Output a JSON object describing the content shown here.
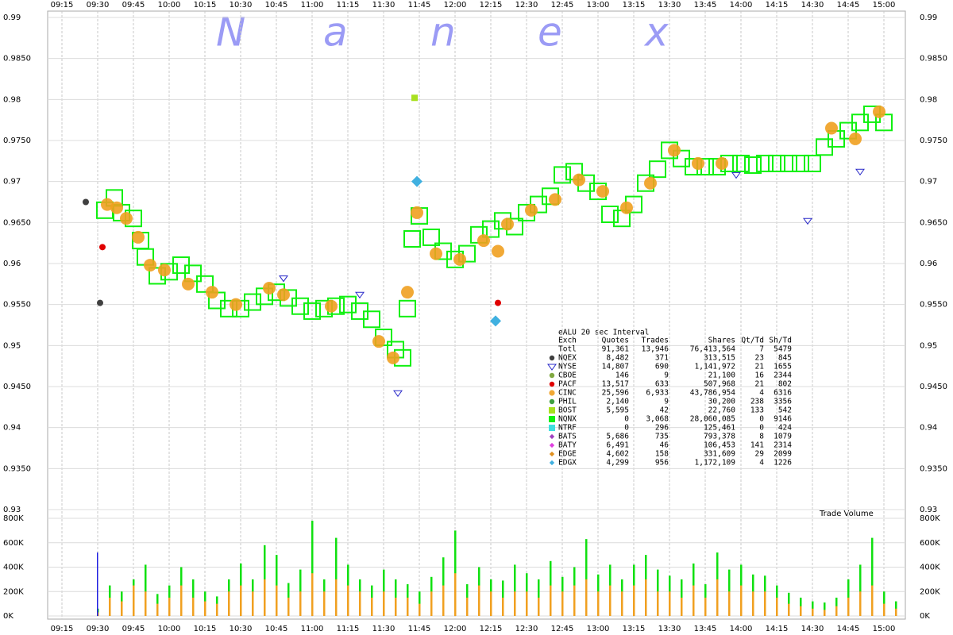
{
  "chart_data": {
    "type": "scatter",
    "watermark": [
      "N",
      "a",
      "n",
      "e",
      "x"
    ],
    "xlim": [
      "09:09",
      "15:09"
    ],
    "xticks": [
      "09:15",
      "09:30",
      "09:45",
      "10:00",
      "10:15",
      "10:30",
      "10:45",
      "11:00",
      "11:15",
      "11:30",
      "11:45",
      "12:00",
      "12:15",
      "12:30",
      "12:45",
      "13:00",
      "13:15",
      "13:30",
      "13:45",
      "14:00",
      "14:15",
      "14:30",
      "14:45",
      "15:00"
    ],
    "ylim": [
      0.93,
      0.99
    ],
    "yticks": [
      0.99,
      {
        "value": 0.985,
        "label": "0.9850"
      },
      0.98,
      {
        "value": 0.975,
        "label": "0.9750"
      },
      0.97,
      {
        "value": 0.965,
        "label": "0.9650"
      },
      0.96,
      {
        "value": 0.955,
        "label": "0.9550"
      },
      0.95,
      {
        "value": 0.945,
        "label": "0.9450"
      },
      0.94,
      {
        "value": 0.935,
        "label": "0.9350"
      },
      0.93
    ],
    "grid": true,
    "legend_title": "eALU 20 sec Interval",
    "legend_columns": [
      "Exch",
      "Quotes",
      "Trades",
      "Shares",
      "Qt/Td",
      "Sh/Td"
    ],
    "totals": {
      "name": "Totl",
      "stats": [
        "91,361",
        "13,946",
        "76,413,564",
        "7",
        "5479"
      ]
    },
    "series": [
      {
        "name": "NQEX",
        "color": "#404040",
        "marker": "circle",
        "stats": [
          "8,482",
          "371",
          "313,515",
          "23",
          "845"
        ],
        "x": [
          "09:25",
          "09:31"
        ],
        "values": [
          0.9675,
          0.9552
        ]
      },
      {
        "name": "NYSE",
        "color": "#2828c8",
        "marker": "triangle",
        "stats": [
          "14,807",
          "690",
          "1,141,972",
          "21",
          "1655"
        ],
        "x": [
          "10:48",
          "11:20",
          "11:36",
          "13:58",
          "14:28",
          "14:50"
        ],
        "values": [
          0.9582,
          0.9562,
          0.9442,
          0.9708,
          0.9652,
          0.9712
        ]
      },
      {
        "name": "CBOE",
        "color": "#80a840",
        "marker": "circle",
        "stats": [
          "146",
          "9",
          "21,100",
          "16",
          "2344"
        ]
      },
      {
        "name": "PACF",
        "color": "#e00000",
        "marker": "circle",
        "stats": [
          "13,517",
          "633",
          "507,968",
          "21",
          "802"
        ],
        "x": [
          "09:32",
          "12:18"
        ],
        "values": [
          0.962,
          0.9552
        ]
      },
      {
        "name": "CINC",
        "color": "#f0a020",
        "marker": "dot",
        "stats": [
          "25,596",
          "6,933",
          "43,786,954",
          "4",
          "6316"
        ],
        "x": [
          "09:34",
          "09:38",
          "09:42",
          "09:47",
          "09:52",
          "09:58",
          "10:08",
          "10:18",
          "10:28",
          "10:42",
          "10:48",
          "11:08",
          "11:28",
          "11:34",
          "11:40",
          "11:44",
          "11:52",
          "12:02",
          "12:12",
          "12:18",
          "12:22",
          "12:32",
          "12:42",
          "12:52",
          "13:02",
          "13:12",
          "13:22",
          "13:32",
          "13:42",
          "13:52",
          "14:38",
          "14:48",
          "14:58"
        ],
        "values": [
          0.9672,
          0.9668,
          0.9655,
          0.9632,
          0.9598,
          0.9592,
          0.9575,
          0.9565,
          0.955,
          0.957,
          0.9562,
          0.9548,
          0.9505,
          0.9485,
          0.9565,
          0.9662,
          0.9612,
          0.9605,
          0.9628,
          0.9615,
          0.9648,
          0.9665,
          0.9678,
          0.9702,
          0.9688,
          0.9668,
          0.9698,
          0.9738,
          0.9722,
          0.9722,
          0.9765,
          0.9752,
          0.9785
        ]
      },
      {
        "name": "PHIL",
        "color": "#40a040",
        "marker": "circle",
        "stats": [
          "2,140",
          "9",
          "30,200",
          "238",
          "3356"
        ]
      },
      {
        "name": "BOST",
        "color": "#a8e020",
        "marker": "block",
        "stats": [
          "5,595",
          "42",
          "22,760",
          "133",
          "542"
        ],
        "x": [
          "11:43"
        ],
        "values": [
          0.9802
        ]
      },
      {
        "name": "NQNX",
        "color": "#10f010",
        "marker": "square",
        "stats": [
          "0",
          "3,068",
          "28,060,085",
          "0",
          "9146"
        ],
        "x": [
          "09:33",
          "09:37",
          "09:40",
          "09:45",
          "09:48",
          "09:50",
          "09:55",
          "10:00",
          "10:05",
          "10:10",
          "10:15",
          "10:20",
          "10:25",
          "10:30",
          "10:35",
          "10:40",
          "10:45",
          "10:50",
          "10:55",
          "11:00",
          "11:05",
          "11:10",
          "11:15",
          "11:20",
          "11:25",
          "11:30",
          "11:35",
          "11:38",
          "11:40",
          "11:42",
          "11:45",
          "11:50",
          "11:55",
          "12:00",
          "12:05",
          "12:10",
          "12:15",
          "12:20",
          "12:25",
          "12:30",
          "12:35",
          "12:40",
          "12:45",
          "12:50",
          "12:55",
          "13:00",
          "13:05",
          "13:10",
          "13:15",
          "13:20",
          "13:25",
          "13:30",
          "13:35",
          "13:40",
          "13:45",
          "13:50",
          "13:55",
          "14:00",
          "14:05",
          "14:10",
          "14:15",
          "14:20",
          "14:25",
          "14:30",
          "14:35",
          "14:40",
          "14:45",
          "14:50",
          "14:55",
          "15:00"
        ],
        "values": [
          0.9665,
          0.968,
          0.9662,
          0.9655,
          0.9628,
          0.9608,
          0.9585,
          0.959,
          0.9598,
          0.9588,
          0.9575,
          0.9555,
          0.9545,
          0.9545,
          0.9553,
          0.956,
          0.9565,
          0.9558,
          0.9548,
          0.9542,
          0.9545,
          0.9548,
          0.955,
          0.9542,
          0.9532,
          0.951,
          0.9495,
          0.9485,
          0.9545,
          0.963,
          0.9658,
          0.9632,
          0.9615,
          0.9605,
          0.9612,
          0.9635,
          0.9642,
          0.9652,
          0.9645,
          0.9662,
          0.9672,
          0.9682,
          0.9708,
          0.9712,
          0.9698,
          0.9688,
          0.966,
          0.9655,
          0.9672,
          0.9698,
          0.9715,
          0.9738,
          0.9728,
          0.9718,
          0.9718,
          0.9718,
          0.9722,
          0.9722,
          0.972,
          0.9722,
          0.9722,
          0.9722,
          0.9722,
          0.9722,
          0.9742,
          0.9752,
          0.9762,
          0.9772,
          0.9782,
          0.9772
        ]
      },
      {
        "name": "NTRF",
        "color": "#40e0e0",
        "marker": "block",
        "stats": [
          "0",
          "296",
          "125,461",
          "0",
          "424"
        ]
      },
      {
        "name": "BATS",
        "color": "#a040c0",
        "marker": "diamond",
        "stats": [
          "5,686",
          "735",
          "793,378",
          "8",
          "1079"
        ]
      },
      {
        "name": "BATY",
        "color": "#e040e0",
        "marker": "diamond",
        "stats": [
          "6,491",
          "46",
          "106,453",
          "141",
          "2314"
        ]
      },
      {
        "name": "EDGE",
        "color": "#e09020",
        "marker": "diamond",
        "stats": [
          "4,602",
          "158",
          "331,609",
          "29",
          "2099"
        ]
      },
      {
        "name": "EDGX",
        "color": "#40b0e0",
        "marker": "diamond",
        "stats": [
          "4,299",
          "956",
          "1,172,109",
          "4",
          "1226"
        ],
        "x": [
          "11:44",
          "12:17"
        ],
        "values": [
          0.97,
          0.953
        ]
      }
    ],
    "volume": {
      "label": "Trade Volume",
      "ylim": [
        0,
        800000
      ],
      "yticks": [
        {
          "value": 0,
          "label": "0K"
        },
        {
          "value": 200000,
          "label": "200K"
        },
        {
          "value": 400000,
          "label": "400K"
        },
        {
          "value": 600000,
          "label": "600K"
        },
        {
          "value": 800000,
          "label": "800K"
        }
      ],
      "series": [
        {
          "color": "#10e010",
          "x": [
            "09:30",
            "09:35",
            "09:40",
            "09:45",
            "09:50",
            "09:55",
            "10:00",
            "10:05",
            "10:10",
            "10:15",
            "10:20",
            "10:25",
            "10:30",
            "10:35",
            "10:40",
            "10:45",
            "10:50",
            "10:55",
            "11:00",
            "11:05",
            "11:10",
            "11:15",
            "11:20",
            "11:25",
            "11:30",
            "11:35",
            "11:40",
            "11:45",
            "11:50",
            "11:55",
            "12:00",
            "12:05",
            "12:10",
            "12:15",
            "12:20",
            "12:25",
            "12:30",
            "12:35",
            "12:40",
            "12:45",
            "12:50",
            "12:55",
            "13:00",
            "13:05",
            "13:10",
            "13:15",
            "13:20",
            "13:25",
            "13:30",
            "13:35",
            "13:40",
            "13:45",
            "13:50",
            "13:55",
            "14:00",
            "14:05",
            "14:10",
            "14:15",
            "14:20",
            "14:25",
            "14:30",
            "14:35",
            "14:40",
            "14:45",
            "14:50",
            "14:55",
            "15:00",
            "15:05"
          ],
          "values": [
            60000,
            250000,
            200000,
            300000,
            420000,
            180000,
            250000,
            400000,
            300000,
            200000,
            160000,
            300000,
            430000,
            300000,
            580000,
            500000,
            270000,
            380000,
            780000,
            300000,
            640000,
            420000,
            300000,
            250000,
            380000,
            300000,
            260000,
            200000,
            320000,
            480000,
            700000,
            260000,
            400000,
            300000,
            290000,
            420000,
            350000,
            300000,
            450000,
            320000,
            400000,
            630000,
            340000,
            420000,
            300000,
            420000,
            500000,
            380000,
            330000,
            300000,
            430000,
            260000,
            520000,
            380000,
            420000,
            340000,
            330000,
            250000,
            190000,
            150000,
            120000,
            110000,
            150000,
            300000,
            420000,
            640000,
            200000,
            120000
          ]
        },
        {
          "color": "#f0a020",
          "x": [
            "09:30",
            "09:35",
            "09:40",
            "09:45",
            "09:50",
            "09:55",
            "10:00",
            "10:05",
            "10:10",
            "10:15",
            "10:20",
            "10:25",
            "10:30",
            "10:35",
            "10:40",
            "10:45",
            "10:50",
            "10:55",
            "11:00",
            "11:05",
            "11:10",
            "11:15",
            "11:20",
            "11:25",
            "11:30",
            "11:35",
            "11:40",
            "11:45",
            "11:50",
            "11:55",
            "12:00",
            "12:05",
            "12:10",
            "12:15",
            "12:20",
            "12:25",
            "12:30",
            "12:35",
            "12:40",
            "12:45",
            "12:50",
            "12:55",
            "13:00",
            "13:05",
            "13:10",
            "13:15",
            "13:20",
            "13:25",
            "13:30",
            "13:35",
            "13:40",
            "13:45",
            "13:50",
            "13:55",
            "14:00",
            "14:05",
            "14:10",
            "14:15",
            "14:20",
            "14:25",
            "14:30",
            "14:35",
            "14:40",
            "14:45",
            "14:50",
            "14:55",
            "15:00",
            "15:05"
          ],
          "values": [
            30000,
            150000,
            120000,
            250000,
            200000,
            100000,
            150000,
            250000,
            150000,
            120000,
            100000,
            200000,
            250000,
            200000,
            300000,
            250000,
            150000,
            200000,
            350000,
            200000,
            300000,
            250000,
            200000,
            150000,
            200000,
            150000,
            150000,
            100000,
            200000,
            250000,
            350000,
            150000,
            250000,
            200000,
            150000,
            200000,
            200000,
            150000,
            250000,
            200000,
            250000,
            300000,
            200000,
            250000,
            200000,
            250000,
            300000,
            200000,
            200000,
            150000,
            250000,
            150000,
            300000,
            200000,
            250000,
            200000,
            200000,
            150000,
            100000,
            80000,
            60000,
            50000,
            80000,
            150000,
            200000,
            250000,
            100000,
            60000
          ]
        },
        {
          "color": "#2020e0",
          "x": [
            "09:30"
          ],
          "values": [
            520000
          ]
        }
      ]
    }
  }
}
